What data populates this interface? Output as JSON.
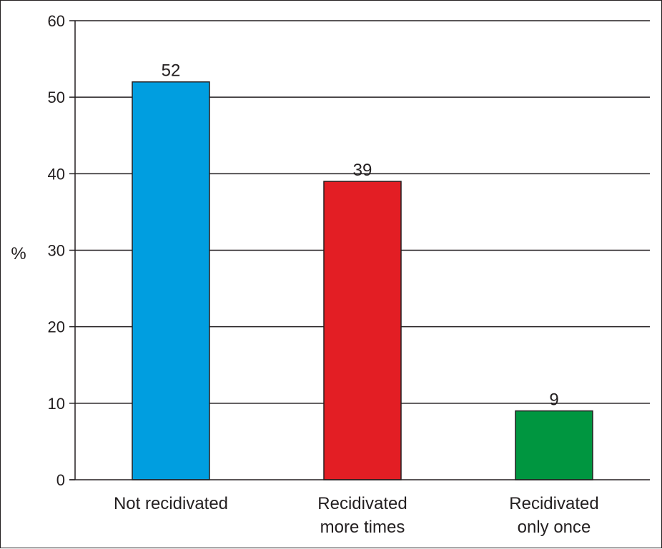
{
  "chart_data": {
    "type": "bar",
    "categories": [
      [
        "Not recidivated"
      ],
      [
        "Recidivated",
        "more times"
      ],
      [
        "Recidivated",
        "only once"
      ]
    ],
    "values": [
      52,
      39,
      9
    ],
    "data_labels": [
      "52",
      "39",
      "9"
    ],
    "bar_colors": [
      "#009ee0",
      "#e31e24",
      "#009640"
    ],
    "ylabel": "%",
    "ylim": [
      0,
      60
    ],
    "yticks": [
      0,
      10,
      20,
      30,
      40,
      50,
      60
    ],
    "grid": true
  }
}
